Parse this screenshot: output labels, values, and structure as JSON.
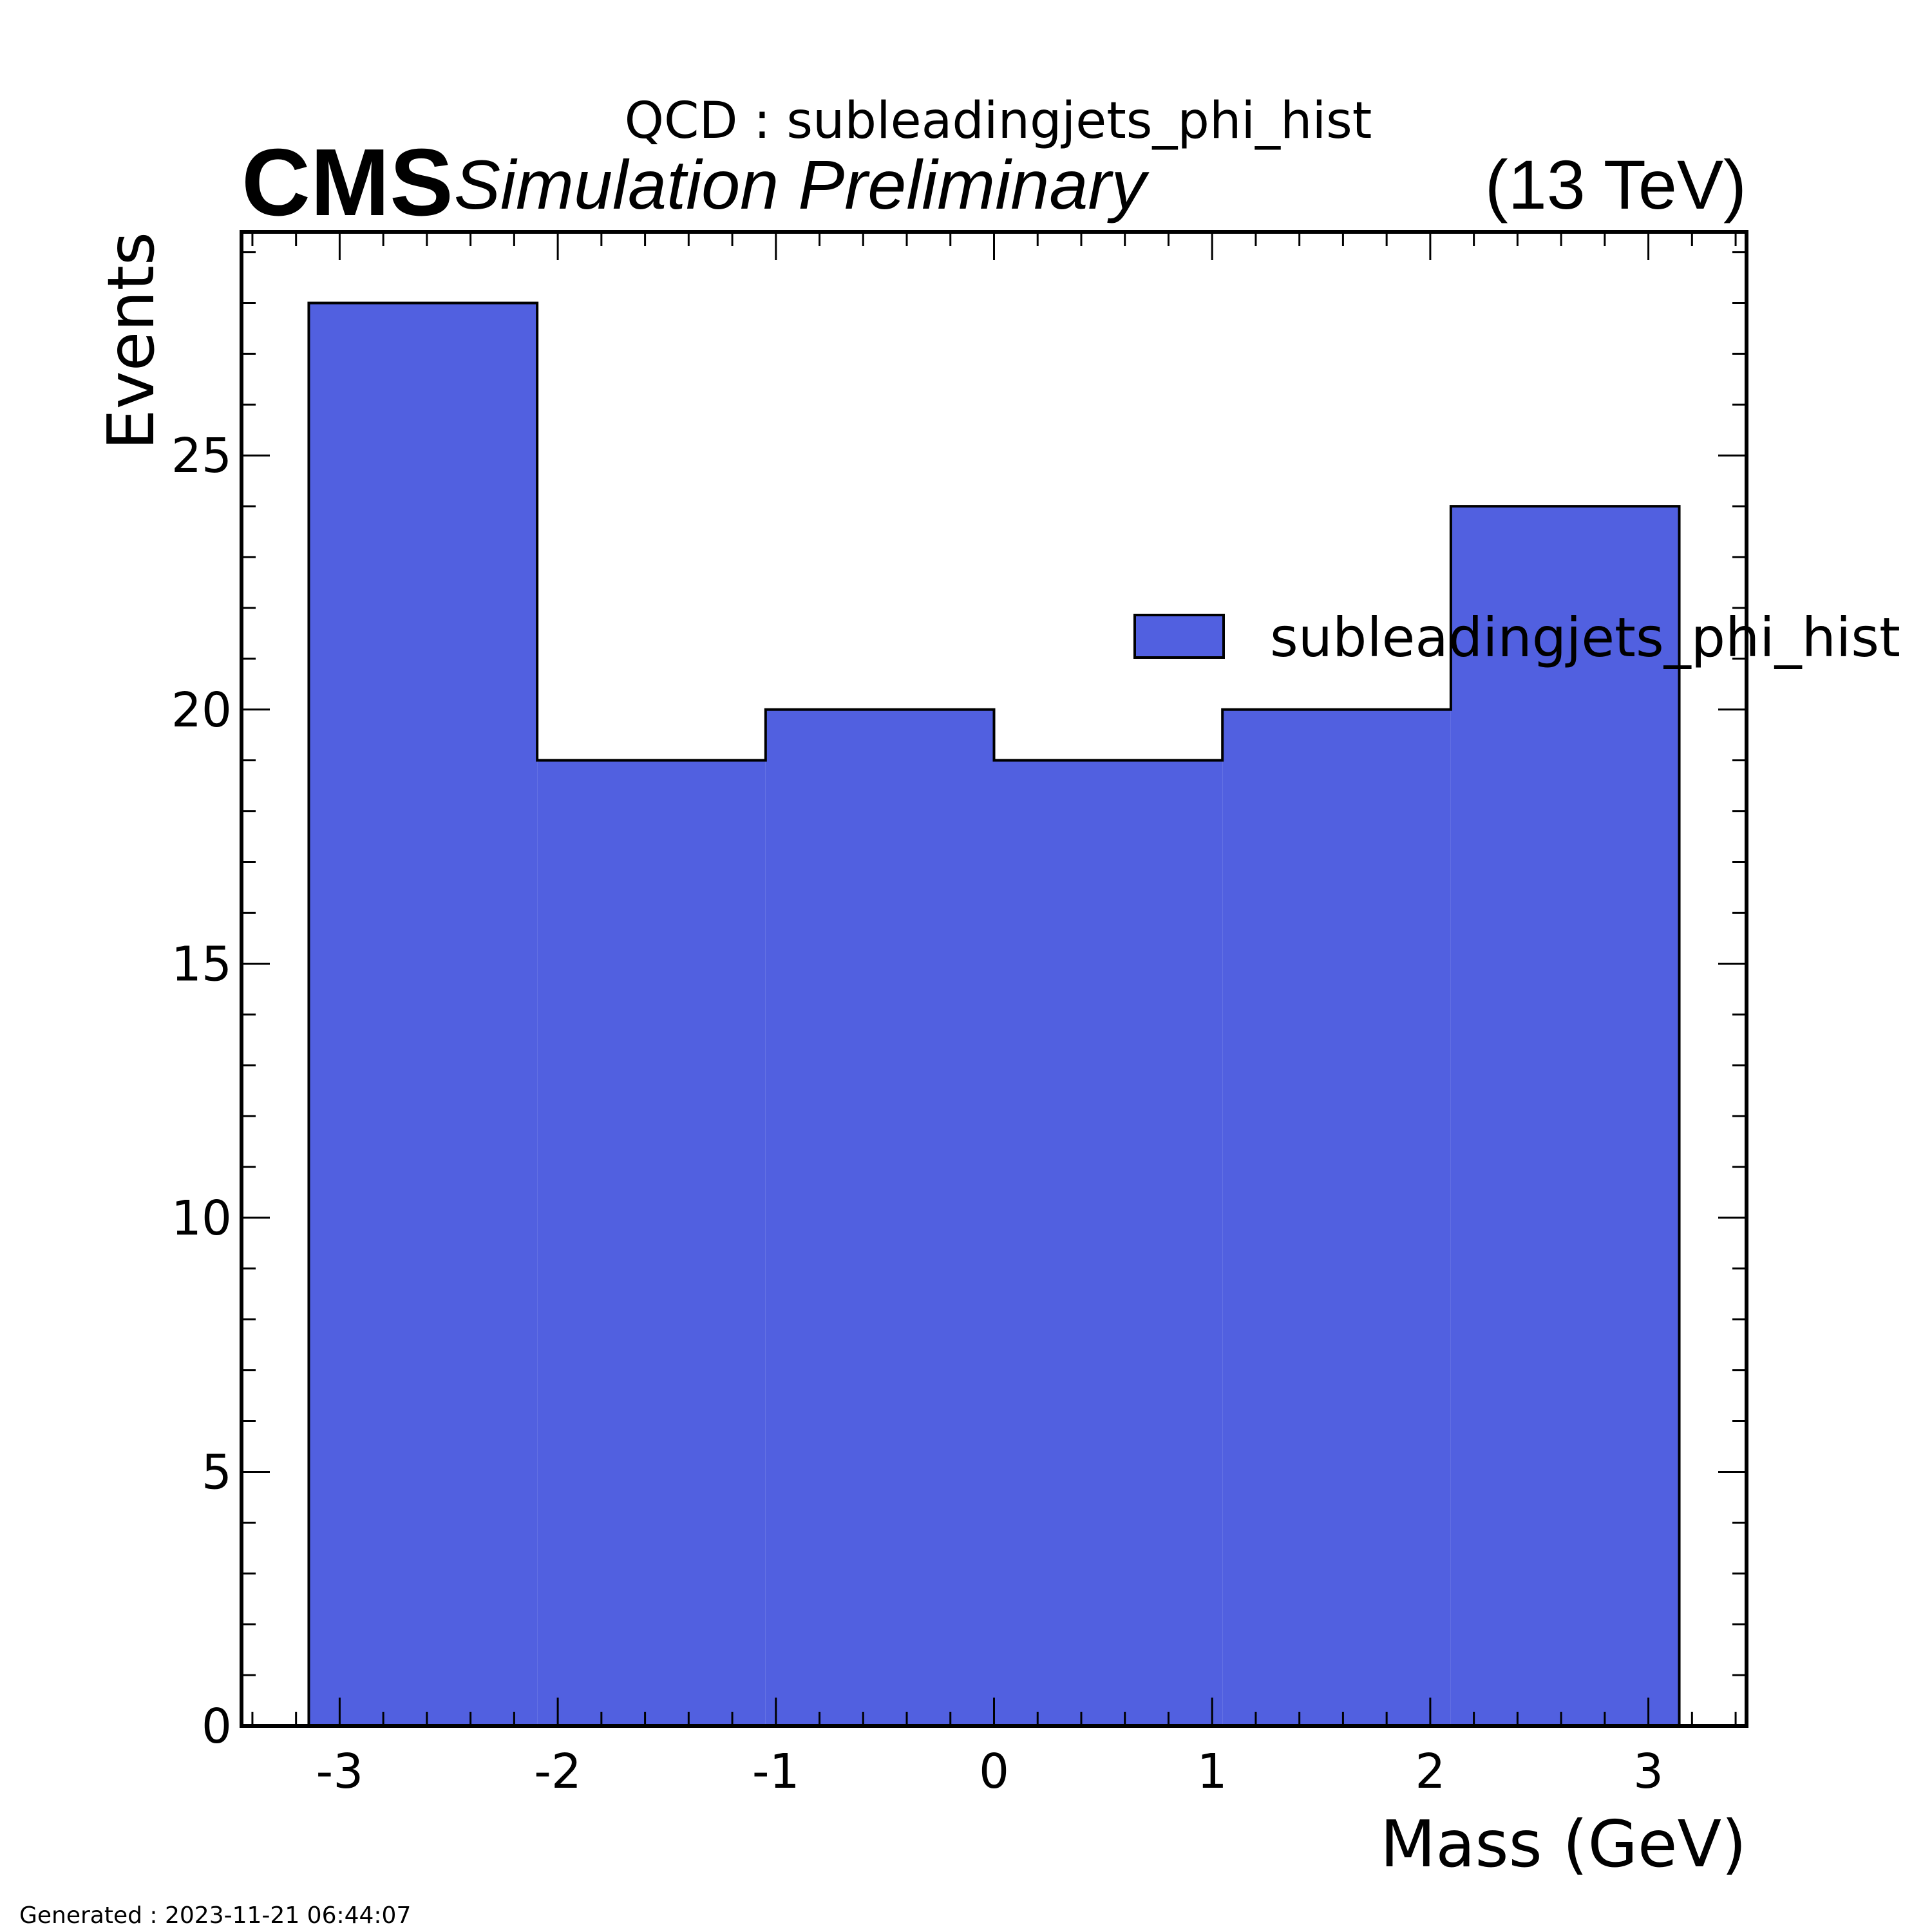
{
  "header": {
    "title": "QCD : subleadingjets_phi_hist",
    "experiment": "CMS",
    "status": "Simulation Preliminary",
    "energy": "(13 TeV)"
  },
  "footer": {
    "generated": "Generated : 2023-11-21 06:44:07"
  },
  "colors": {
    "fill": "#5160e0",
    "edge": "#000000"
  },
  "chart_data": {
    "type": "bar",
    "xlabel": "Mass (GeV)",
    "ylabel": "Events",
    "xlim": [
      -3.45,
      3.45
    ],
    "ylim": [
      0,
      29.4
    ],
    "bin_edges": [
      -3.1416,
      -2.0944,
      -1.0472,
      0.0,
      1.0472,
      2.0944,
      3.1416
    ],
    "values": [
      28,
      19,
      20,
      19,
      20,
      24
    ],
    "xticks": [
      -3,
      -2,
      -1,
      0,
      1,
      2,
      3
    ],
    "yticks": [
      0,
      5,
      10,
      15,
      20,
      25
    ],
    "series": [
      {
        "name": "subleadingjets_phi_hist",
        "values": [
          28,
          19,
          20,
          19,
          20,
          24
        ]
      }
    ],
    "legend": {
      "placement": "right"
    },
    "grid": false
  }
}
